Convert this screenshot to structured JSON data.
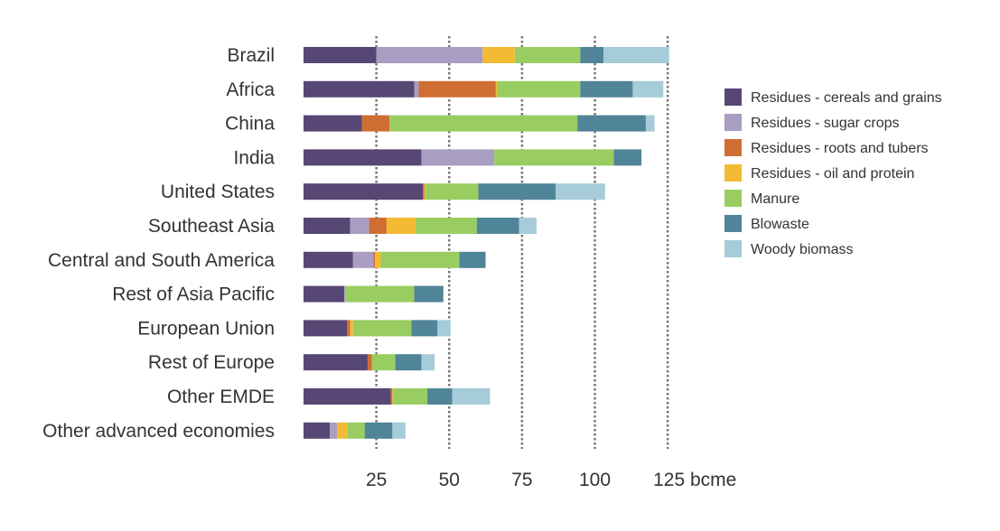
{
  "chart_data": {
    "type": "bar",
    "orientation": "horizontal",
    "stacked": true,
    "categories": [
      "Brazil",
      "Africa",
      "China",
      "India",
      "United States",
      "Southeast Asia",
      "Central and South America",
      "Rest of Asia Pacific",
      "European Union",
      "Rest of Europe",
      "Other EMDE",
      "Other advanced economies"
    ],
    "series": [
      {
        "name": "Residues - cereals and grains",
        "color": "#574774",
        "values": [
          25,
          38,
          20,
          40.5,
          41,
          16,
          17,
          14,
          15,
          22,
          30,
          9
        ]
      },
      {
        "name": "Residues - sugar crops",
        "color": "#a99dc2",
        "values": [
          36.5,
          1.5,
          0,
          25,
          0,
          6.5,
          7,
          0.5,
          0,
          0,
          0,
          2.5
        ]
      },
      {
        "name": "Residues - roots and tubers",
        "color": "#cf6e33",
        "values": [
          0,
          26.5,
          9.5,
          0,
          0.5,
          6,
          0.5,
          0,
          1,
          1.5,
          0.5,
          0
        ]
      },
      {
        "name": "Residues - oil and protein",
        "color": "#f2bb33",
        "values": [
          11,
          0.5,
          0,
          0,
          0.5,
          10,
          2,
          0,
          1,
          0,
          0.5,
          3.5
        ]
      },
      {
        "name": "Manure",
        "color": "#99cd62",
        "values": [
          22.5,
          28.5,
          64.5,
          41,
          18,
          21,
          27,
          23.5,
          20,
          8,
          11.5,
          6
        ]
      },
      {
        "name": "Blowaste",
        "color": "#508499",
        "values": [
          8,
          18,
          23.5,
          9.5,
          26.5,
          14.5,
          9,
          10,
          9,
          9,
          8.5,
          9.5
        ]
      },
      {
        "name": "Woody biomass",
        "color": "#a6cbd9",
        "values": [
          22.5,
          10.5,
          3,
          0,
          17,
          6,
          0,
          0,
          4.5,
          4.5,
          13,
          4.5
        ]
      }
    ],
    "x_ticks": [
      "25",
      "50",
      "75",
      "100",
      "125 bcme"
    ],
    "x_tick_values": [
      25,
      50,
      75,
      100,
      125
    ],
    "xlim": [
      0,
      125
    ],
    "xlabel": "",
    "ylabel": "",
    "title": "",
    "grid": "vertical dashed lines at major ticks",
    "legend_position": "right"
  }
}
